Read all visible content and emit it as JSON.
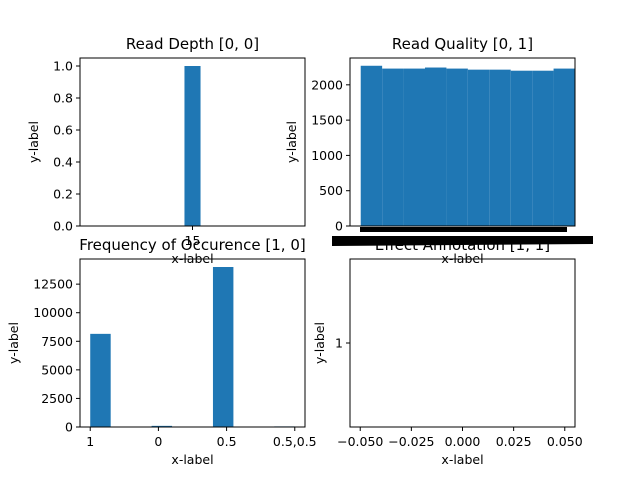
{
  "chart_data": [
    {
      "id": "p00",
      "type": "bar",
      "title": "Read Depth [0, 0]",
      "xlabel": "x-label",
      "ylabel": "y-label",
      "categories": [
        "15"
      ],
      "values": [
        1.0
      ],
      "xlim": [
        14.3,
        15.7
      ],
      "ylim": [
        0,
        1.05
      ],
      "yticks": [
        0.0,
        0.2,
        0.4,
        0.6,
        0.8,
        1.0
      ],
      "ytick_labels": [
        "0.0",
        "0.2",
        "0.4",
        "0.6",
        "0.8",
        "1.0"
      ],
      "xticks": [
        15
      ],
      "xtick_labels": [
        "15"
      ],
      "bars": [
        {
          "x0": 14.95,
          "x1": 15.05,
          "value": 1.0
        }
      ]
    },
    {
      "id": "p01",
      "type": "bar",
      "title": "Read Quality [0, 1]",
      "xlabel": "x-label",
      "ylabel": "y-label",
      "xlim": [
        -0.05,
        1.0
      ],
      "ylim": [
        0,
        2380
      ],
      "yticks": [
        0,
        500,
        1000,
        1500,
        2000
      ],
      "ytick_labels": [
        "0",
        "500",
        "1000",
        "1500",
        "2000"
      ],
      "xtick_note": "overlapping unreadable tick labels",
      "bars": [
        {
          "x0": 0.0,
          "x1": 0.1,
          "value": 2270
        },
        {
          "x0": 0.1,
          "x1": 0.2,
          "value": 2230
        },
        {
          "x0": 0.2,
          "x1": 0.3,
          "value": 2230
        },
        {
          "x0": 0.3,
          "x1": 0.4,
          "value": 2245
        },
        {
          "x0": 0.4,
          "x1": 0.5,
          "value": 2230
        },
        {
          "x0": 0.5,
          "x1": 0.6,
          "value": 2215
        },
        {
          "x0": 0.6,
          "x1": 0.7,
          "value": 2215
        },
        {
          "x0": 0.7,
          "x1": 0.8,
          "value": 2200
        },
        {
          "x0": 0.8,
          "x1": 0.9,
          "value": 2200
        },
        {
          "x0": 0.9,
          "x1": 1.0,
          "value": 2230
        }
      ]
    },
    {
      "id": "p10",
      "type": "bar",
      "title": "Frequency of Occurence [1, 0]",
      "xlabel": "x-label",
      "ylabel": "y-label",
      "categories": [
        "1",
        "0",
        "0.5",
        "0.5,0.5"
      ],
      "xlim": [
        -0.15,
        3.15
      ],
      "ylim": [
        0,
        14700
      ],
      "yticks": [
        0,
        2500,
        5000,
        7500,
        10000,
        12500
      ],
      "ytick_labels": [
        "0",
        "2500",
        "5000",
        "7500",
        "10000",
        "12500"
      ],
      "xticks": [
        0,
        1,
        2,
        3
      ],
      "xtick_labels": [
        "1",
        "0",
        "0.5",
        "0.5,0.5"
      ],
      "bars": [
        {
          "x0": 0.0,
          "x1": 0.3,
          "value": 8150
        },
        {
          "x0": 0.9,
          "x1": 1.2,
          "value": 100
        },
        {
          "x0": 1.8,
          "x1": 2.1,
          "value": 14000
        },
        {
          "x0": 2.7,
          "x1": 3.0,
          "value": 10
        }
      ]
    },
    {
      "id": "p11",
      "type": "bar",
      "title": "Effect Annotation [1, 1]",
      "xlabel": "x-label",
      "ylabel": "y-label",
      "xlim": [
        -0.055,
        0.055
      ],
      "ylim": [
        0,
        2
      ],
      "yticks": [
        1
      ],
      "ytick_labels": [
        "1"
      ],
      "xticks": [
        -0.05,
        -0.025,
        0.0,
        0.025,
        0.05
      ],
      "xtick_labels": [
        "−0.050",
        "−0.025",
        "0.000",
        "0.025",
        "0.050"
      ],
      "bars": []
    }
  ]
}
